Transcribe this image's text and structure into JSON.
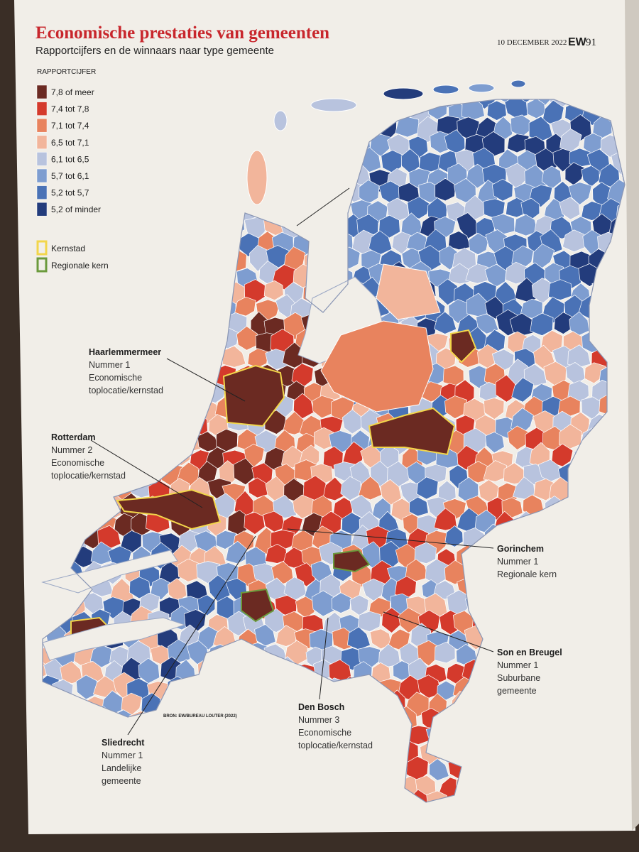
{
  "header": {
    "title": "Economische prestaties van gemeenten",
    "subtitle": "Rapportcijfers en de winnaars naar type gemeente",
    "date": "10 DECEMBER 2022",
    "magazine": "EW",
    "page": "91"
  },
  "legend": {
    "title": "RAPPORTCIJFER",
    "items": [
      {
        "label": "7,8 of meer",
        "color": "#6b2a22"
      },
      {
        "label": "7,4 tot 7,8",
        "color": "#d43a2c"
      },
      {
        "label": "7,1 tot 7,4",
        "color": "#e8835e"
      },
      {
        "label": "6,5 tot 7,1",
        "color": "#f2b59b"
      },
      {
        "label": "6,1 tot 6,5",
        "color": "#b8c3de"
      },
      {
        "label": "5,7 tot 6,1",
        "color": "#7e9dd0"
      },
      {
        "label": "5,2 tot 5,7",
        "color": "#4a72b6"
      },
      {
        "label": "5,2 of minder",
        "color": "#233c7c"
      }
    ],
    "outlines": [
      {
        "label": "Kernstad",
        "color": "#f2d64b"
      },
      {
        "label": "Regionale kern",
        "color": "#6b9a3c"
      }
    ]
  },
  "annotations": [
    {
      "name": "Haarlemmermeer",
      "lines": [
        "Nummer 1",
        "Economische",
        "toplocatie/kernstad"
      ]
    },
    {
      "name": "Rotterdam",
      "lines": [
        "Nummer 2",
        "Economische",
        "toplocatie/kernstad"
      ]
    },
    {
      "name": "Gorinchem",
      "lines": [
        "Nummer 1",
        "Regionale kern"
      ]
    },
    {
      "name": "Son en Breugel",
      "lines": [
        "Nummer 1",
        "Suburbane",
        "gemeente"
      ]
    },
    {
      "name": "Den Bosch",
      "lines": [
        "Nummer 3",
        "Economische",
        "toplocatie/kernstad"
      ]
    },
    {
      "name": "Sliedrecht",
      "lines": [
        "Nummer 1",
        "Landelijke",
        "gemeente"
      ]
    }
  ],
  "source": "BRON: EW/BUREAU LOUTER (2022)"
}
